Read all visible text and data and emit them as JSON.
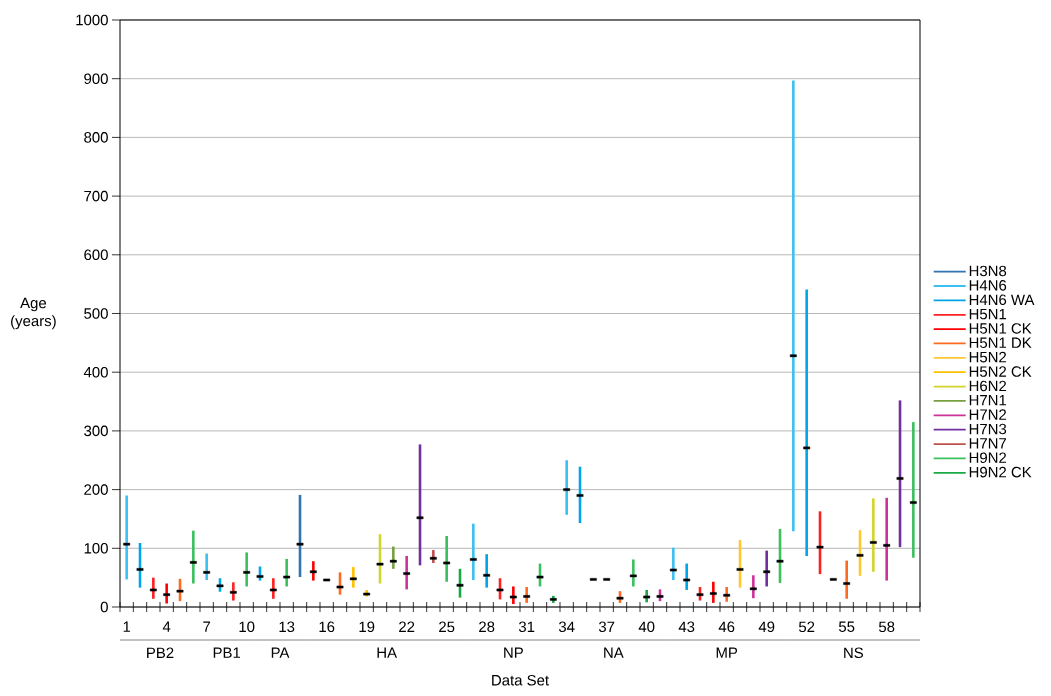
{
  "chart_data": {
    "type": "bar",
    "xlabel": "Data Set",
    "ylabel": "Age (years)",
    "xlim": [
      0.5,
      60.5
    ],
    "ylim": [
      0,
      1000
    ],
    "xticks": [
      {
        "value": 0.5,
        "label": null
      },
      1,
      {
        "value": 1.5,
        "label": null
      },
      {
        "value": 2.5,
        "label": null
      },
      {
        "value": 3.5,
        "label": null
      },
      4,
      {
        "value": 4.5,
        "label": null
      },
      {
        "value": 5.5,
        "label": null
      },
      {
        "value": 6.5,
        "label": null
      },
      7,
      {
        "value": 7.5,
        "label": null
      },
      {
        "value": 8.5,
        "label": null
      },
      {
        "value": 9.5,
        "label": null
      },
      10,
      {
        "value": 10.5,
        "label": null
      },
      {
        "value": 11.5,
        "label": null
      },
      {
        "value": 12.5,
        "label": null
      },
      13,
      {
        "value": 13.5,
        "label": null
      },
      {
        "value": 14.5,
        "label": null
      },
      {
        "value": 15.5,
        "label": null
      },
      16,
      {
        "value": 16.5,
        "label": null
      },
      {
        "value": 17.5,
        "label": null
      },
      {
        "value": 18.5,
        "label": null
      },
      19,
      {
        "value": 19.5,
        "label": null
      },
      {
        "value": 20.5,
        "label": null
      },
      {
        "value": 21.5,
        "label": null
      },
      22,
      {
        "value": 22.5,
        "label": null
      },
      {
        "value": 23.5,
        "label": null
      },
      {
        "value": 24.5,
        "label": null
      },
      25,
      {
        "value": 25.5,
        "label": null
      },
      {
        "value": 26.5,
        "label": null
      },
      {
        "value": 27.5,
        "label": null
      },
      28,
      {
        "value": 28.5,
        "label": null
      },
      {
        "value": 29.5,
        "label": null
      },
      {
        "value": 30.5,
        "label": null
      },
      31,
      {
        "value": 31.5,
        "label": null
      },
      {
        "value": 32.5,
        "label": null
      },
      {
        "value": 33.5,
        "label": null
      },
      34,
      {
        "value": 34.5,
        "label": null
      },
      {
        "value": 35.5,
        "label": null
      },
      {
        "value": 36.5,
        "label": null
      },
      37,
      {
        "value": 37.5,
        "label": null
      },
      {
        "value": 38.5,
        "label": null
      },
      {
        "value": 39.5,
        "label": null
      },
      40,
      {
        "value": 40.5,
        "label": null
      },
      {
        "value": 41.5,
        "label": null
      },
      {
        "value": 42.5,
        "label": null
      },
      43,
      {
        "value": 43.5,
        "label": null
      },
      {
        "value": 44.5,
        "label": null
      },
      {
        "value": 45.5,
        "label": null
      },
      46,
      {
        "value": 46.5,
        "label": null
      },
      {
        "value": 47.5,
        "label": null
      },
      {
        "value": 48.5,
        "label": null
      },
      49,
      {
        "value": 49.5,
        "label": null
      },
      {
        "value": 50.5,
        "label": null
      },
      {
        "value": 51.5,
        "label": null
      },
      52,
      {
        "value": 52.5,
        "label": null
      },
      {
        "value": 53.5,
        "label": null
      },
      {
        "value": 54.5,
        "label": null
      },
      55,
      {
        "value": 55.5,
        "label": null
      },
      {
        "value": 56.5,
        "label": null
      },
      {
        "value": 57.5,
        "label": null
      },
      58,
      {
        "value": 58.5,
        "label": null
      },
      {
        "value": 59.5,
        "label": null
      },
      {
        "value": 60.5,
        "label": null
      }
    ],
    "yticks": [
      0,
      100,
      200,
      300,
      400,
      500,
      600,
      700,
      800,
      900,
      1000
    ],
    "grid": "y",
    "legend": "right",
    "marker": "square",
    "annotations": [
      "PB2",
      "PB1",
      "PA",
      "HA",
      "NP",
      "NA",
      "MP",
      "NS"
    ],
    "series": [
      {
        "name": "H3N8",
        "color": "#2e75b6",
        "x": [
          14
        ],
        "base": [
          51
        ],
        "values": [
          140
        ]
      },
      {
        "name": "H4N6",
        "color": "#3cc0f2",
        "x": [
          1,
          7,
          27,
          34,
          42,
          51
        ],
        "base": [
          47,
          46,
          46,
          157,
          46,
          129
        ],
        "values": [
          143,
          45,
          96,
          93,
          55,
          768
        ]
      },
      {
        "name": "H4N6 WA",
        "color": "#00a6e6",
        "x": [
          2,
          8,
          11,
          28,
          35,
          43,
          52
        ],
        "base": [
          33,
          26,
          45,
          33,
          143,
          29,
          87
        ],
        "values": [
          76,
          23,
          24,
          57,
          96,
          45,
          454
        ]
      },
      {
        "name": "H5N1",
        "color": "#ff2020",
        "x": [
          3,
          9,
          12,
          29,
          44,
          53
        ],
        "base": [
          14,
          11,
          14,
          13,
          11,
          56
        ],
        "values": [
          36,
          31,
          35,
          36,
          23,
          107
        ]
      },
      {
        "name": "H5N1 CK",
        "color": "#ff0000",
        "x": [
          4,
          15,
          30,
          45
        ],
        "base": [
          6,
          45,
          5,
          7
        ],
        "values": [
          34,
          33,
          30,
          36
        ]
      },
      {
        "name": "H5N1 DK",
        "color": "#ff6a21",
        "x": [
          5,
          17,
          31,
          38,
          46,
          55
        ],
        "base": [
          10,
          21,
          7,
          7,
          9,
          14
        ],
        "values": [
          38,
          38,
          27,
          20,
          25,
          65
        ]
      },
      {
        "name": "H5N2",
        "color": "#ffc833",
        "x": [
          47,
          56
        ],
        "base": [
          33,
          53
        ],
        "values": [
          81,
          78
        ]
      },
      {
        "name": "H5N2 CK",
        "color": "#ffc000",
        "x": [
          18,
          19
        ],
        "base": [
          33,
          18
        ],
        "values": [
          35,
          11
        ]
      },
      {
        "name": "H6N2",
        "color": "#d4d42a",
        "x": [
          20,
          57
        ],
        "base": [
          40,
          60
        ],
        "values": [
          84,
          125
        ]
      },
      {
        "name": "H7N1",
        "color": "#77a040",
        "x": [
          21
        ],
        "base": [
          65
        ],
        "values": [
          38
        ]
      },
      {
        "name": "H7N2",
        "color": "#cc3399",
        "x": [
          22,
          41,
          48,
          58
        ],
        "base": [
          30,
          10,
          15,
          45
        ],
        "values": [
          57,
          20,
          39,
          141
        ]
      },
      {
        "name": "H7N3",
        "color": "#7030a0",
        "x": [
          23,
          49,
          59
        ],
        "base": [
          71,
          35,
          102
        ],
        "values": [
          206,
          61,
          250
        ]
      },
      {
        "name": "H7N7",
        "color": "#c0504d",
        "x": [
          24
        ],
        "base": [
          75
        ],
        "values": [
          22
        ]
      },
      {
        "name": "H9N2",
        "color": "#3cbf5e",
        "x": [
          6,
          10,
          13,
          25,
          32,
          39,
          50,
          60
        ],
        "base": [
          40,
          35,
          35,
          43,
          35,
          35,
          41,
          84
        ],
        "values": [
          90,
          58,
          47,
          78,
          39,
          46,
          92,
          231
        ]
      },
      {
        "name": "H9N2 CK",
        "color": "#1aa744",
        "x": [
          26,
          33,
          40
        ],
        "base": [
          16,
          7,
          8
        ],
        "values": [
          49,
          12,
          21
        ]
      },
      {
        "type": "scatter",
        "color": "#000000",
        "x": [
          1,
          2,
          3,
          4,
          5,
          6,
          7,
          8,
          9,
          10,
          11,
          12,
          13,
          14,
          15,
          16,
          17,
          18,
          19,
          20,
          21,
          22,
          23,
          24,
          25,
          26,
          27,
          28,
          29,
          30,
          31,
          32,
          33,
          34,
          35,
          36,
          37,
          38,
          39,
          40,
          41,
          42,
          43,
          44,
          45,
          46,
          47,
          48,
          49,
          50,
          51,
          52,
          53,
          54,
          55,
          56,
          57,
          58,
          59,
          60
        ],
        "values": [
          107,
          64,
          29,
          21,
          27,
          76,
          59,
          36,
          25,
          59,
          52,
          29,
          51,
          107,
          60,
          46,
          34,
          48,
          22,
          73,
          78,
          57,
          152,
          83,
          75,
          37,
          81,
          54,
          29,
          17,
          18,
          51,
          13,
          200,
          190,
          47,
          47,
          15,
          53,
          17,
          18,
          63,
          46,
          21,
          23,
          20,
          64,
          31,
          60,
          78,
          428,
          271,
          102,
          47,
          40,
          88,
          110,
          105,
          219,
          178
        ]
      }
    ]
  }
}
